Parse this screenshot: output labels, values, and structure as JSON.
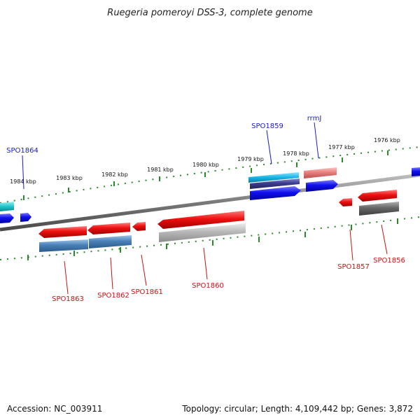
{
  "title": "Ruegeria pomeroyi DSS-3, complete genome",
  "footer": {
    "accession": "Accession: NC_003911",
    "summary": "Topology: circular; Length: 4,109,442 bp; Genes: 3,872"
  },
  "ticks": [
    "1984 kbp",
    "1983 kbp",
    "1982 kbp",
    "1981 kbp",
    "1980 kbp",
    "1979 kbp",
    "1978 kbp",
    "1977 kbp",
    "1976 kbp"
  ],
  "gene_labels": {
    "spo1864": "SPO1864",
    "spo1859": "SPO1859",
    "rrmj": "rrmJ",
    "spo1863": "SPO1863",
    "spo1862": "SPO1862",
    "spo1861": "SPO1861",
    "spo1860": "SPO1860",
    "spo1857": "SPO1857",
    "spo1856": "SPO1856"
  },
  "colors": {
    "backbone": "#7a7a7a",
    "tick": "#2a8a2a",
    "forward_gene": "#1a1aee",
    "reverse_gene": "#ee1a1a",
    "forward_label": "#1a1acc",
    "reverse_label": "#cc1111",
    "rna": "#1ab8e0",
    "cds_dark": "#3a3a8a",
    "cds_steel": "#4a80b8",
    "cds_gray": "#b0b0b0",
    "cds_darkgray": "#666666",
    "pink": "#e88080"
  }
}
